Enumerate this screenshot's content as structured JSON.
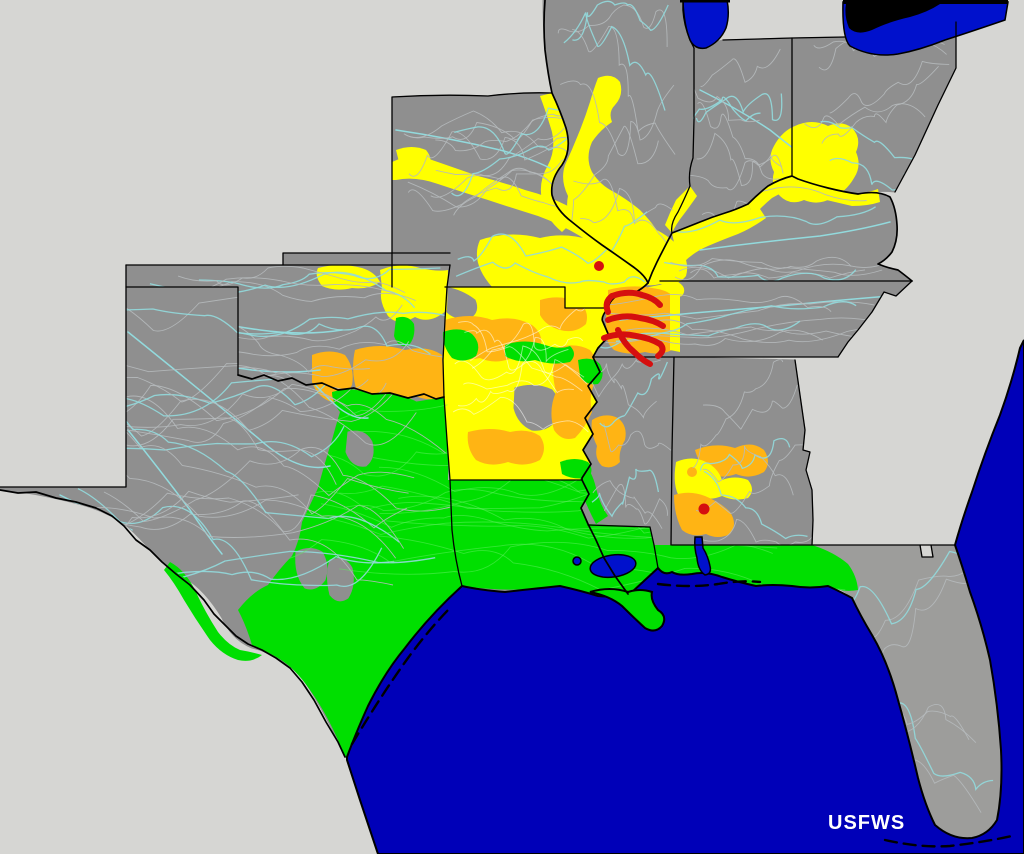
{
  "watermark": {
    "label": "USFWS"
  },
  "colors": {
    "background": "#d6d6d3",
    "land": "#8f8f8f",
    "florida_land": "#9d9d9b",
    "ocean": "#0000b8",
    "lake": "#0011cc",
    "highlight_yellow": "#ffff00",
    "highlight_orange": "#ffb414",
    "highlight_green": "#00df00",
    "highlight_red": "#d50f0f",
    "river": "#92dadd",
    "watershed_line": "#b6babd",
    "watershed_line_green": "#5fee5f",
    "watershed_line_yellow": "#ffffff",
    "border": "#000000",
    "text": "#ffffff"
  },
  "features": {
    "ocean": [
      "gulf-of-mexico",
      "atlantic-ocean"
    ],
    "lakes": [
      "lake-michigan",
      "lake-erie",
      "lake-pontchartrain",
      "mobile-bay"
    ],
    "states_outlined": [
      "Texas",
      "Oklahoma",
      "Missouri",
      "Illinois",
      "Indiana",
      "Ohio",
      "Kentucky",
      "Tennessee",
      "Arkansas",
      "Louisiana",
      "Mississippi",
      "Alabama",
      "Florida"
    ],
    "highlight_classes": [
      {
        "color_key": "highlight_green",
        "areas": [
          "south-and-east-texas",
          "louisiana",
          "southern-mississippi",
          "alabama-coast",
          "florida-panhandle-coast",
          "red-river-oklahoma",
          "scattered-arkansas"
        ]
      },
      {
        "color_key": "highlight_yellow",
        "areas": [
          "missouri-river-corridor",
          "mississippi-river-corridor",
          "illinois-river",
          "ohio-river-corridor",
          "southwest-ohio",
          "arkansas",
          "northeast-oklahoma",
          "southwest-alabama"
        ]
      },
      {
        "color_key": "highlight_orange",
        "areas": [
          "west-tennessee",
          "arkansas-ouachita",
          "eastern-oklahoma",
          "west-central-mississippi",
          "southwest-alabama"
        ]
      },
      {
        "color_key": "highlight_red",
        "areas": [
          "west-tennessee-streams",
          "southeast-missouri-point",
          "southwest-alabama-point"
        ]
      }
    ]
  }
}
